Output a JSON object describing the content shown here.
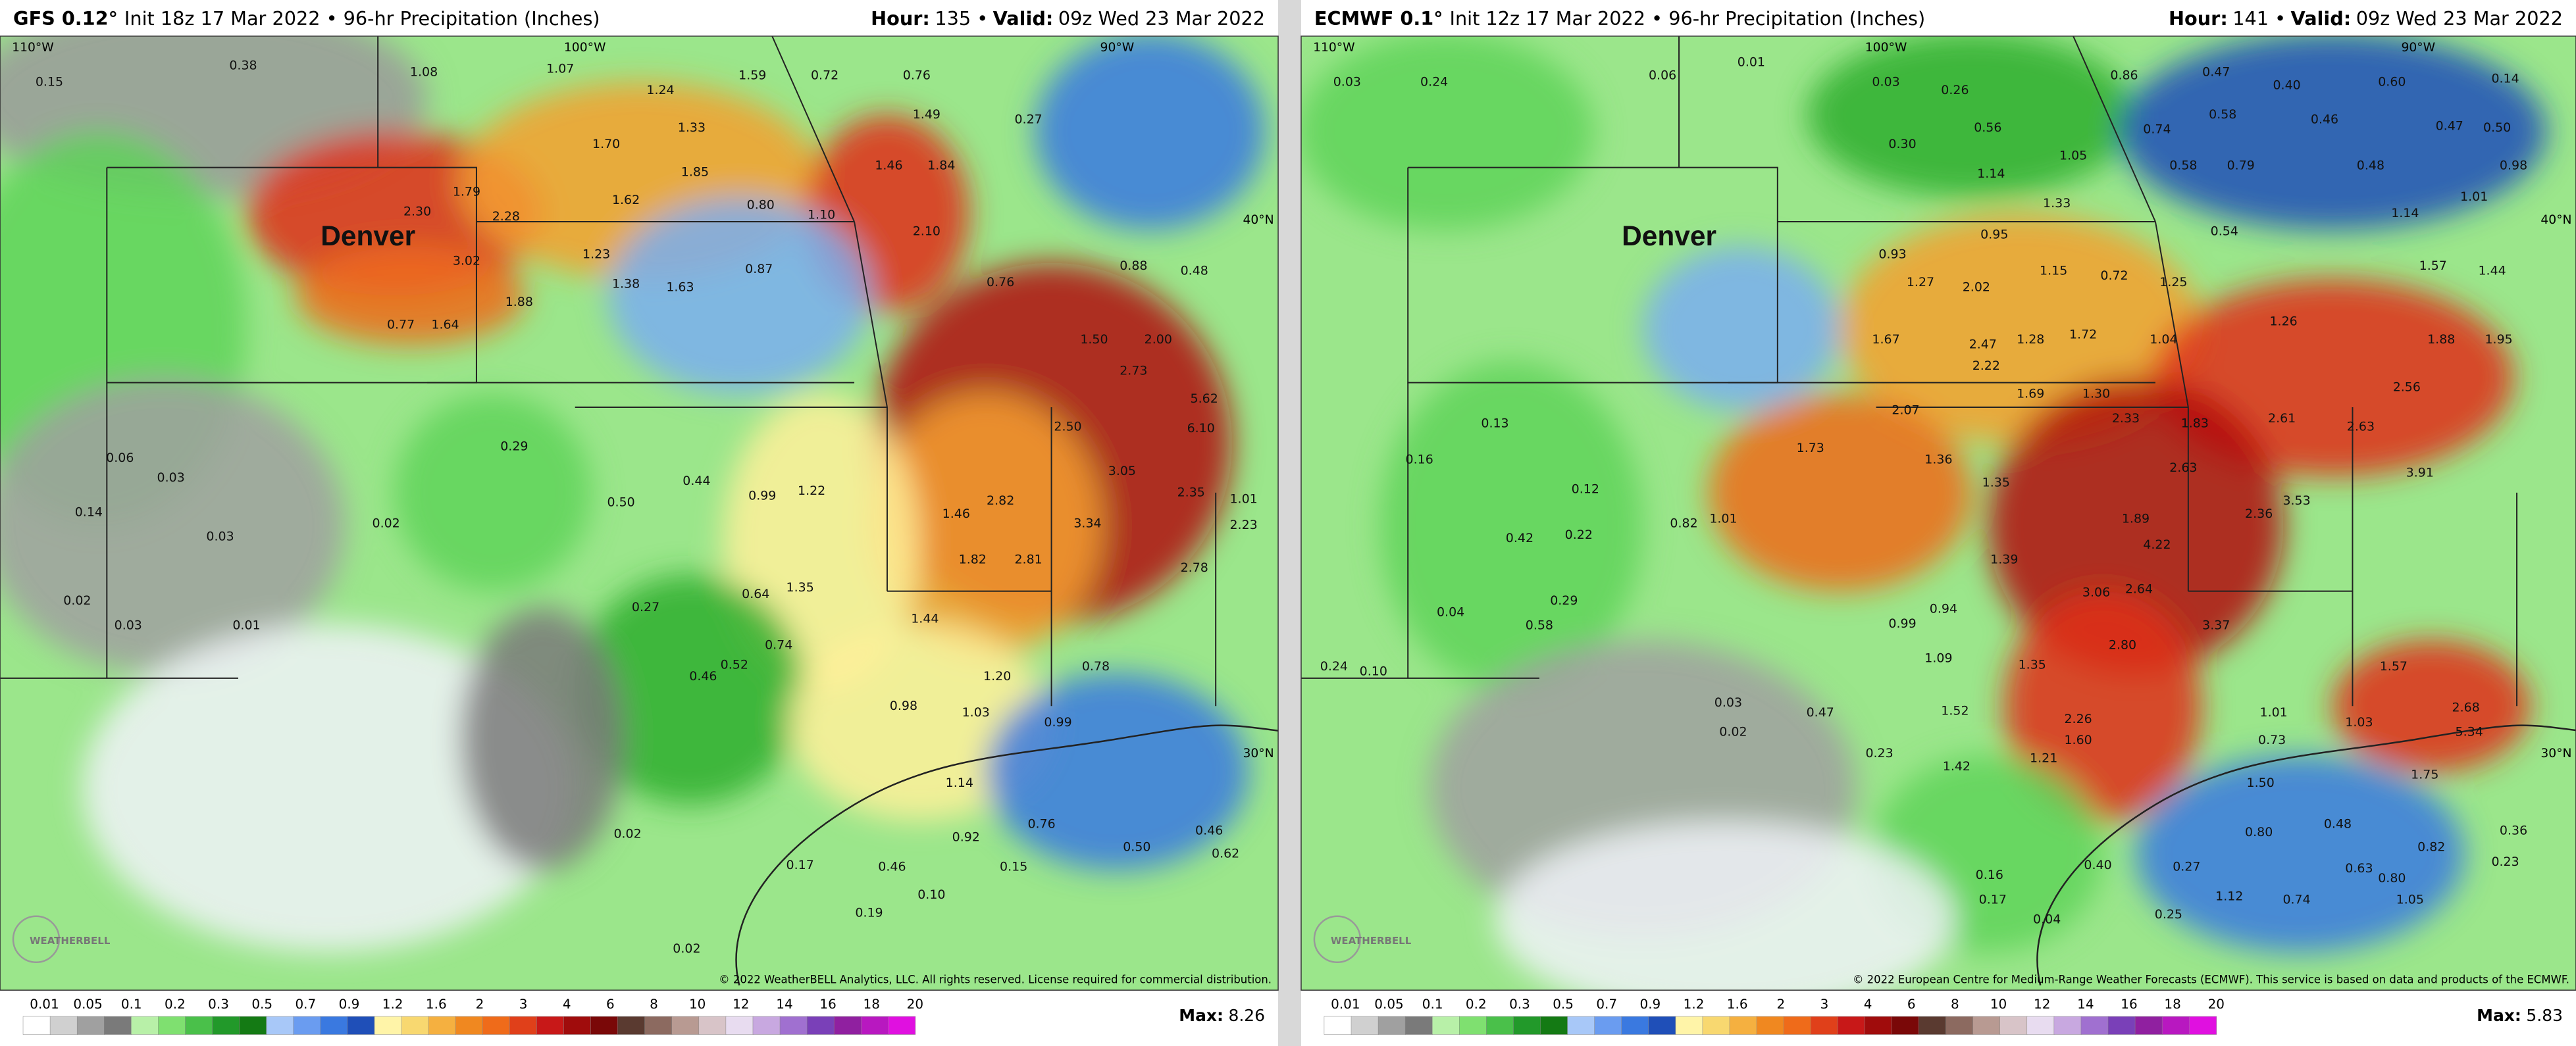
{
  "colorbar": {
    "labels": [
      "0.01",
      "0.05",
      "0.1",
      "0.2",
      "0.3",
      "0.5",
      "0.7",
      "0.9",
      "1.2",
      "1.6",
      "2",
      "3",
      "4",
      "6",
      "8",
      "10",
      "12",
      "14",
      "16",
      "18",
      "20"
    ]
  },
  "logo": "WEATHERBELL",
  "panels": [
    {
      "model": "GFS 0.12°",
      "init": "Init 18z 17 Mar 2022 • 96-hr Precipitation (Inches)",
      "hour_label": "Hour:",
      "hour": "135 •",
      "valid_label": "Valid:",
      "valid": "09z Wed 23 Mar 2022",
      "city": "Denver",
      "lon_labels": [
        "110°W",
        "100°W",
        "90°W"
      ],
      "lat_labels": [
        "40°N",
        "30°N"
      ],
      "copyright": "© 2022 WeatherBELL Analytics, LLC. All rights reserved. License required for commercial distribution.",
      "max_label": "Max:",
      "max": "8.26",
      "values": [
        "0.15",
        "0.38",
        "1.08",
        "1.07",
        "1.24",
        "1.59",
        "0.72",
        "0.76",
        "0.27",
        "1.70",
        "1.33",
        "1.85",
        "1.62",
        "2.30",
        "1.79",
        "2.28",
        "3.02",
        "1.88",
        "1.64",
        "0.77",
        "1.23",
        "1.38",
        "1.63",
        "0.87",
        "0.80",
        "1.10",
        "2.10",
        "1.46",
        "1.84",
        "1.49",
        "0.76",
        "0.88",
        "0.48",
        "1.50",
        "2.00",
        "2.73",
        "5.62",
        "6.10",
        "2.50",
        "3.05",
        "2.35",
        "1.01",
        "2.23",
        "2.78",
        "2.82",
        "3.34",
        "1.46",
        "1.82",
        "2.81",
        "1.44",
        "0.99",
        "1.22",
        "1.35",
        "0.64",
        "0.74",
        "0.46",
        "0.52",
        "0.98",
        "1.03",
        "1.20",
        "0.78",
        "0.99",
        "1.14",
        "0.92",
        "0.76",
        "0.50",
        "0.46",
        "0.62",
        "0.17",
        "0.46",
        "0.19",
        "0.10",
        "0.15",
        "0.02",
        "0.03",
        "0.01",
        "0.06",
        "0.03",
        "0.14",
        "0.03",
        "0.02",
        "0.29",
        "0.50",
        "0.44",
        "0.27",
        "0.02",
        "0.02"
      ]
    },
    {
      "model": "ECMWF 0.1°",
      "init": "Init 12z 17 Mar 2022 • 96-hr Precipitation (Inches)",
      "hour_label": "Hour:",
      "hour": "141 •",
      "valid_label": "Valid:",
      "valid": "09z Wed 23 Mar 2022",
      "city": "Denver",
      "lon_labels": [
        "110°W",
        "100°W",
        "90°W"
      ],
      "lat_labels": [
        "40°N",
        "30°N"
      ],
      "copyright": "© 2022 European Centre for Medium-Range Weather Forecasts (ECMWF). This service is based on data and products of the ECMWF.",
      "max_label": "Max:",
      "max": "5.83",
      "values": [
        "0.03",
        "0.24",
        "0.06",
        "0.01",
        "0.03",
        "0.26",
        "0.86",
        "0.47",
        "0.40",
        "0.60",
        "0.14",
        "0.56",
        "0.74",
        "0.58",
        "0.46",
        "0.47",
        "0.50",
        "0.30",
        "1.14",
        "1.05",
        "0.58",
        "0.79",
        "0.48",
        "0.98",
        "1.33",
        "1.01",
        "0.54",
        "1.14",
        "0.93",
        "0.95",
        "1.27",
        "2.02",
        "1.15",
        "0.72",
        "1.25",
        "1.57",
        "1.44",
        "1.67",
        "2.47",
        "1.28",
        "1.72",
        "1.04",
        "1.26",
        "1.88",
        "1.95",
        "2.22",
        "1.69",
        "1.30",
        "2.56",
        "2.07",
        "2.33",
        "1.83",
        "2.61",
        "2.63",
        "1.73",
        "1.36",
        "2.63",
        "3.91",
        "1.35",
        "1.89",
        "3.53",
        "2.36",
        "4.22",
        "1.39",
        "3.06",
        "2.64",
        "3.37",
        "2.80",
        "1.35",
        "2.26",
        "1.60",
        "1.21",
        "1.42",
        "1.52",
        "1.09",
        "0.94",
        "0.99",
        "1.01",
        "0.82",
        "0.42",
        "0.58",
        "0.29",
        "0.22",
        "0.12",
        "1.57",
        "1.03",
        "2.68",
        "5.34",
        "1.75",
        "1.50",
        "1.01",
        "0.73",
        "0.80",
        "0.48",
        "0.82",
        "0.63",
        "1.12",
        "0.74",
        "0.80",
        "1.05",
        "0.36",
        "0.23",
        "0.40",
        "0.27",
        "0.25",
        "0.16",
        "0.17",
        "0.04",
        "0.02",
        "0.03",
        "0.47",
        "0.23",
        "0.24",
        "0.10",
        "0.04",
        "0.16",
        "0.13"
      ]
    }
  ]
}
